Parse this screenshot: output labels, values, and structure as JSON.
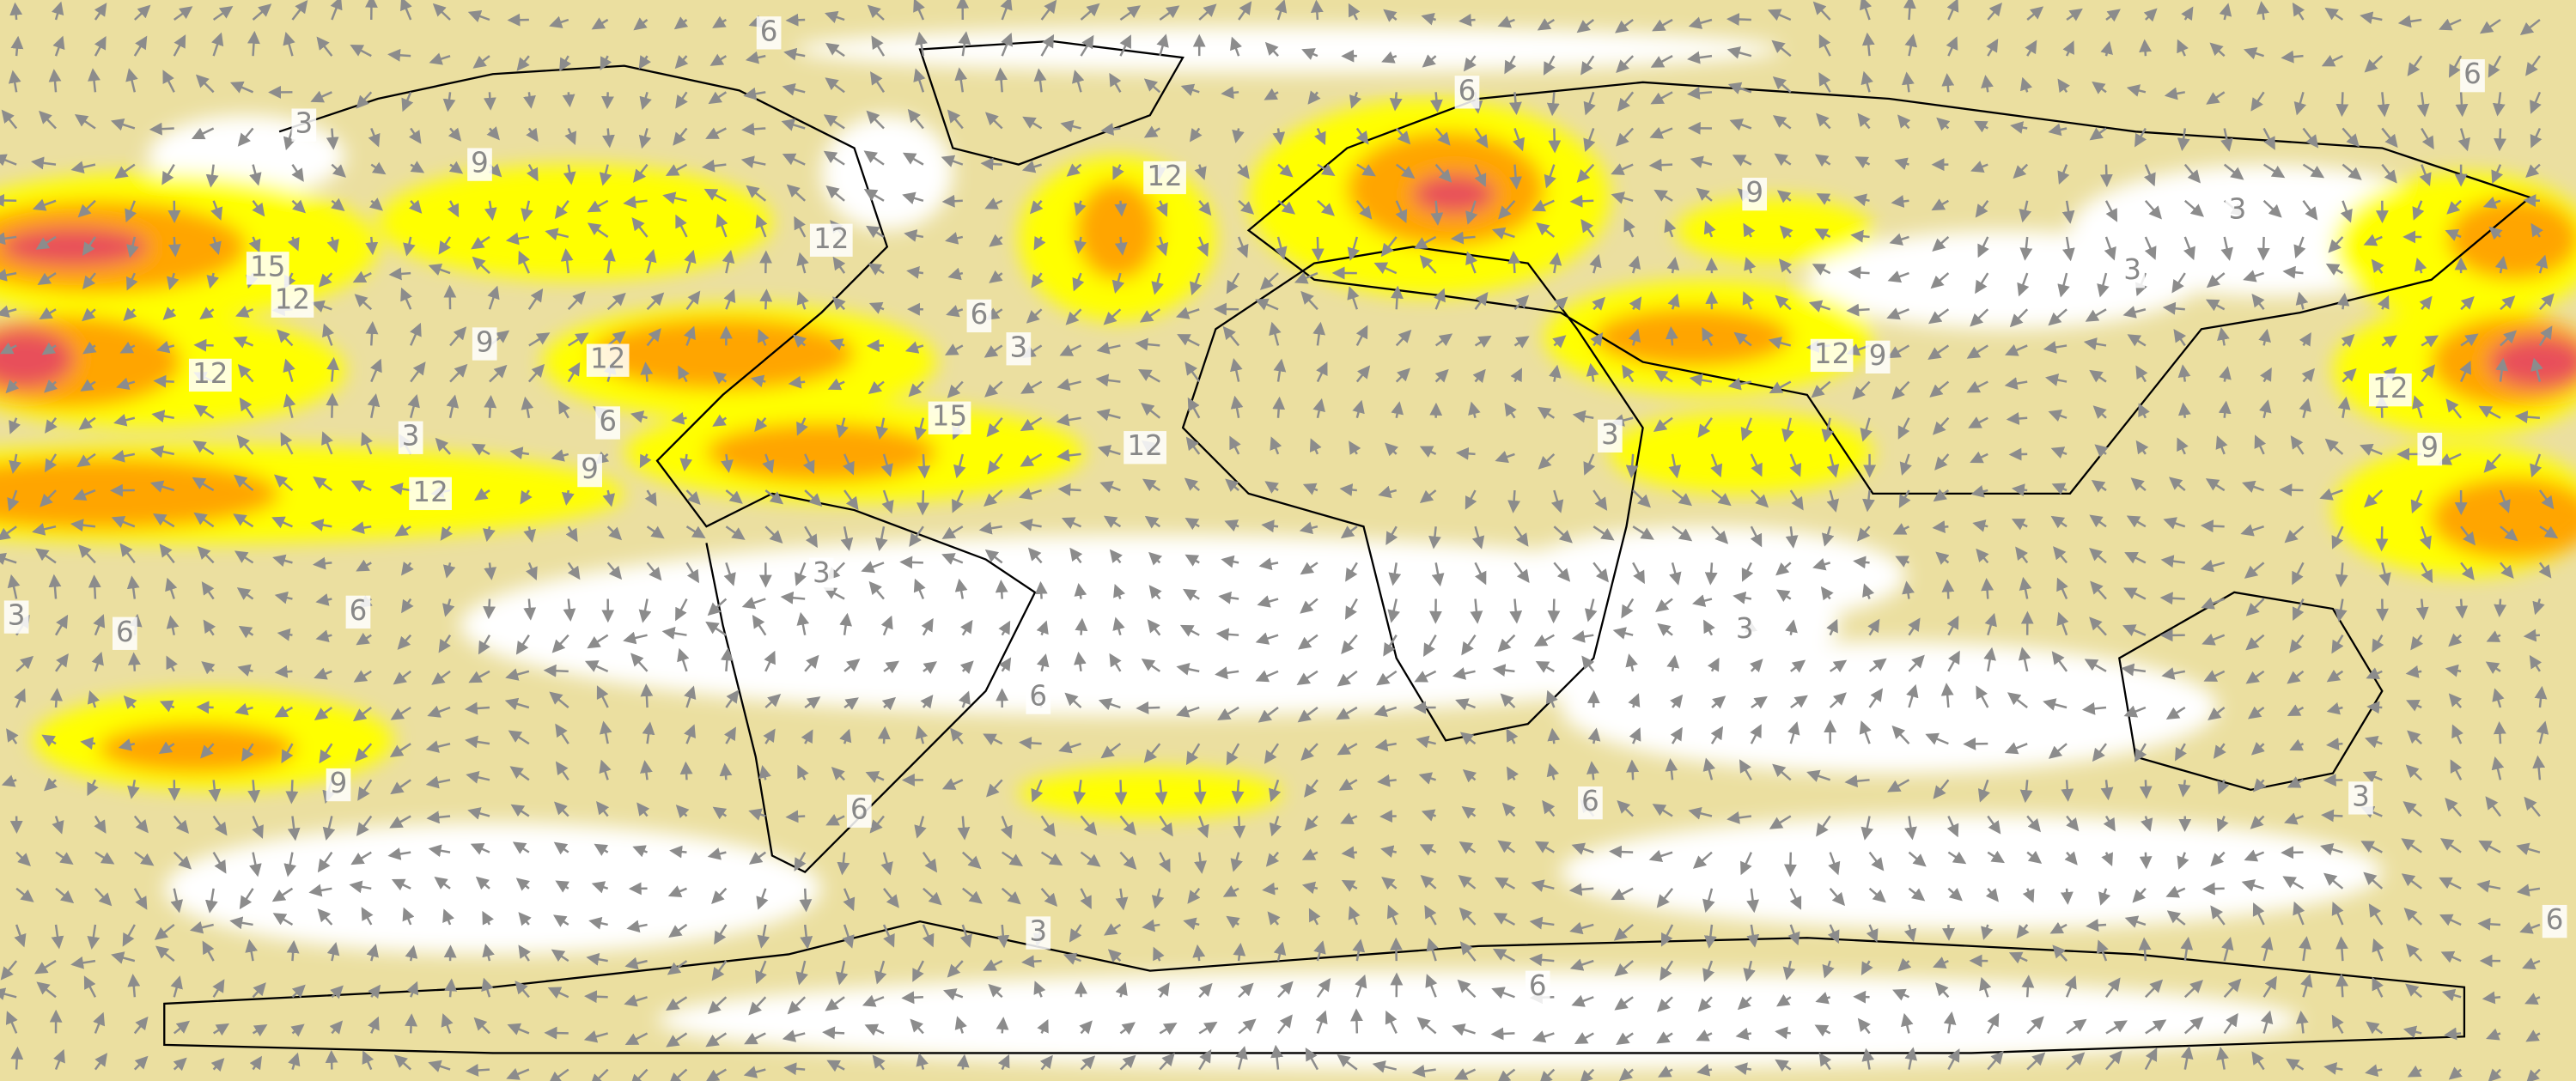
{
  "contour_labels": [
    "6",
    "6",
    "6",
    "3",
    "9",
    "12",
    "9",
    "3",
    "15",
    "12",
    "12",
    "6",
    "3",
    "3",
    "9",
    "12",
    "12",
    "12",
    "9",
    "12",
    "6",
    "15",
    "3",
    "12",
    "3",
    "9",
    "9",
    "12",
    "3",
    "3",
    "6",
    "6",
    "3",
    "6",
    "9",
    "6",
    "6",
    "3",
    "3",
    "6",
    "6"
  ]
}
